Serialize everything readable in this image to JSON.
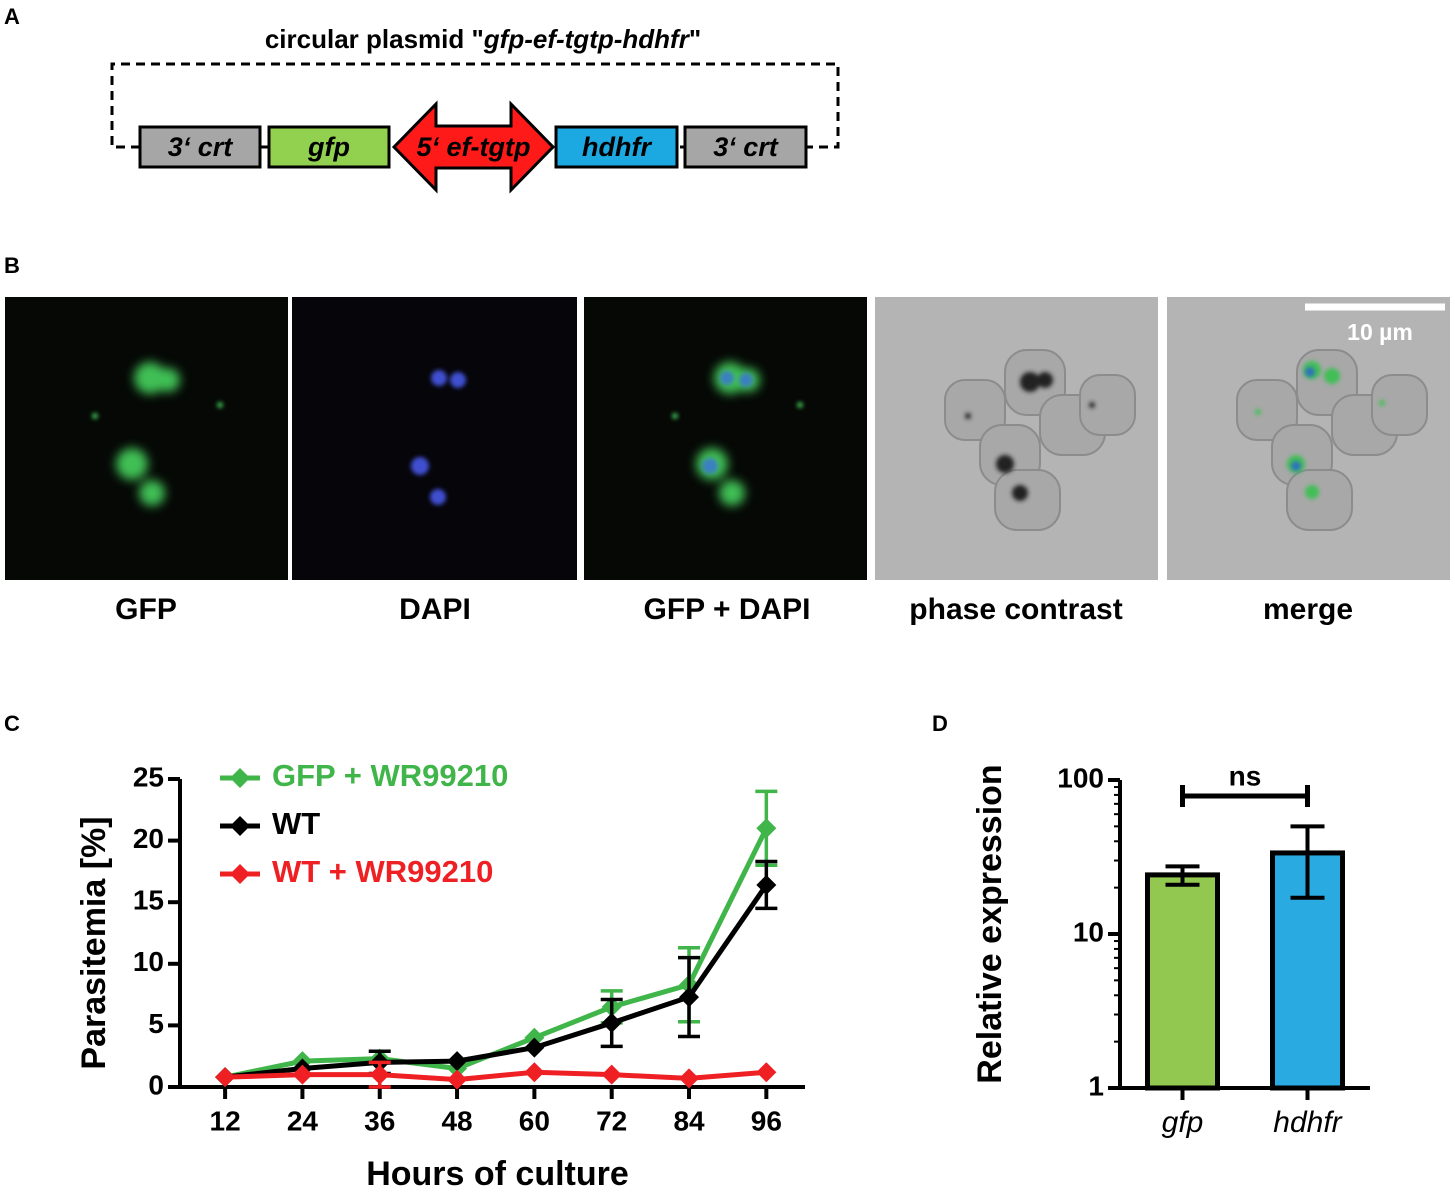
{
  "panel_labels": [
    "A",
    "B",
    "C",
    "D"
  ],
  "plasmid": {
    "title_prefix": "circular plasmid \"",
    "title_name": "gfp-ef-tgtp-hdhfr",
    "title_suffix": "\"",
    "segments": [
      {
        "label": "3‘ crt",
        "color": "#a6a6a6"
      },
      {
        "label": "gfp",
        "color": "#92d050"
      },
      {
        "label": "5‘ ef-tgtp",
        "color": "#ff1a1a"
      },
      {
        "label": "hdhfr",
        "color": "#1ca8e0"
      },
      {
        "label": "3‘ crt",
        "color": "#a6a6a6"
      }
    ]
  },
  "micrographs": {
    "labels": [
      "GFP",
      "DAPI",
      "GFP + DAPI",
      "phase contrast",
      "merge"
    ],
    "scale_bar": "10 µm"
  },
  "chart_data": [
    {
      "type": "line",
      "y_label": "Parasitemia [%]",
      "x_label": "Hours of culture",
      "x": [
        12,
        24,
        36,
        48,
        60,
        72,
        84,
        96
      ],
      "xlim": [
        5,
        102
      ],
      "xticks": [
        12,
        24,
        36,
        48,
        60,
        72,
        84,
        96
      ],
      "ylim": [
        0,
        25
      ],
      "yticks": [
        0,
        5,
        10,
        15,
        20,
        25
      ],
      "legend": "top-left",
      "series": [
        {
          "name": "GFP + WR99210",
          "color": "#3fb54a",
          "values": [
            0.8,
            2.1,
            2.3,
            1.5,
            4.0,
            6.5,
            8.3,
            21.0
          ],
          "errors": [
            null,
            null,
            null,
            null,
            null,
            1.3,
            3.0,
            3.0
          ]
        },
        {
          "name": "WT",
          "color": "#000000",
          "values": [
            0.8,
            1.5,
            2.0,
            2.1,
            3.2,
            5.2,
            7.3,
            16.4
          ],
          "errors": [
            null,
            null,
            0.9,
            null,
            null,
            1.9,
            3.2,
            1.9
          ]
        },
        {
          "name": "WT + WR99210",
          "color": "#ee2024",
          "values": [
            0.8,
            1.0,
            1.0,
            0.6,
            1.2,
            1.0,
            0.7,
            1.2
          ],
          "errors": [
            null,
            null,
            1.0,
            null,
            null,
            null,
            null,
            null
          ]
        }
      ]
    },
    {
      "type": "bar",
      "y_label": "Relative expression",
      "log_scale": true,
      "categories": [
        "gfp",
        "hdhfr"
      ],
      "values": [
        24.2,
        33.6
      ],
      "errors": [
        3.3,
        16.4
      ],
      "colors": [
        "#92c84f",
        "#29abe2"
      ],
      "ylim": [
        1,
        100
      ],
      "yticks": [
        1,
        10,
        100
      ],
      "annotation": "ns"
    }
  ]
}
